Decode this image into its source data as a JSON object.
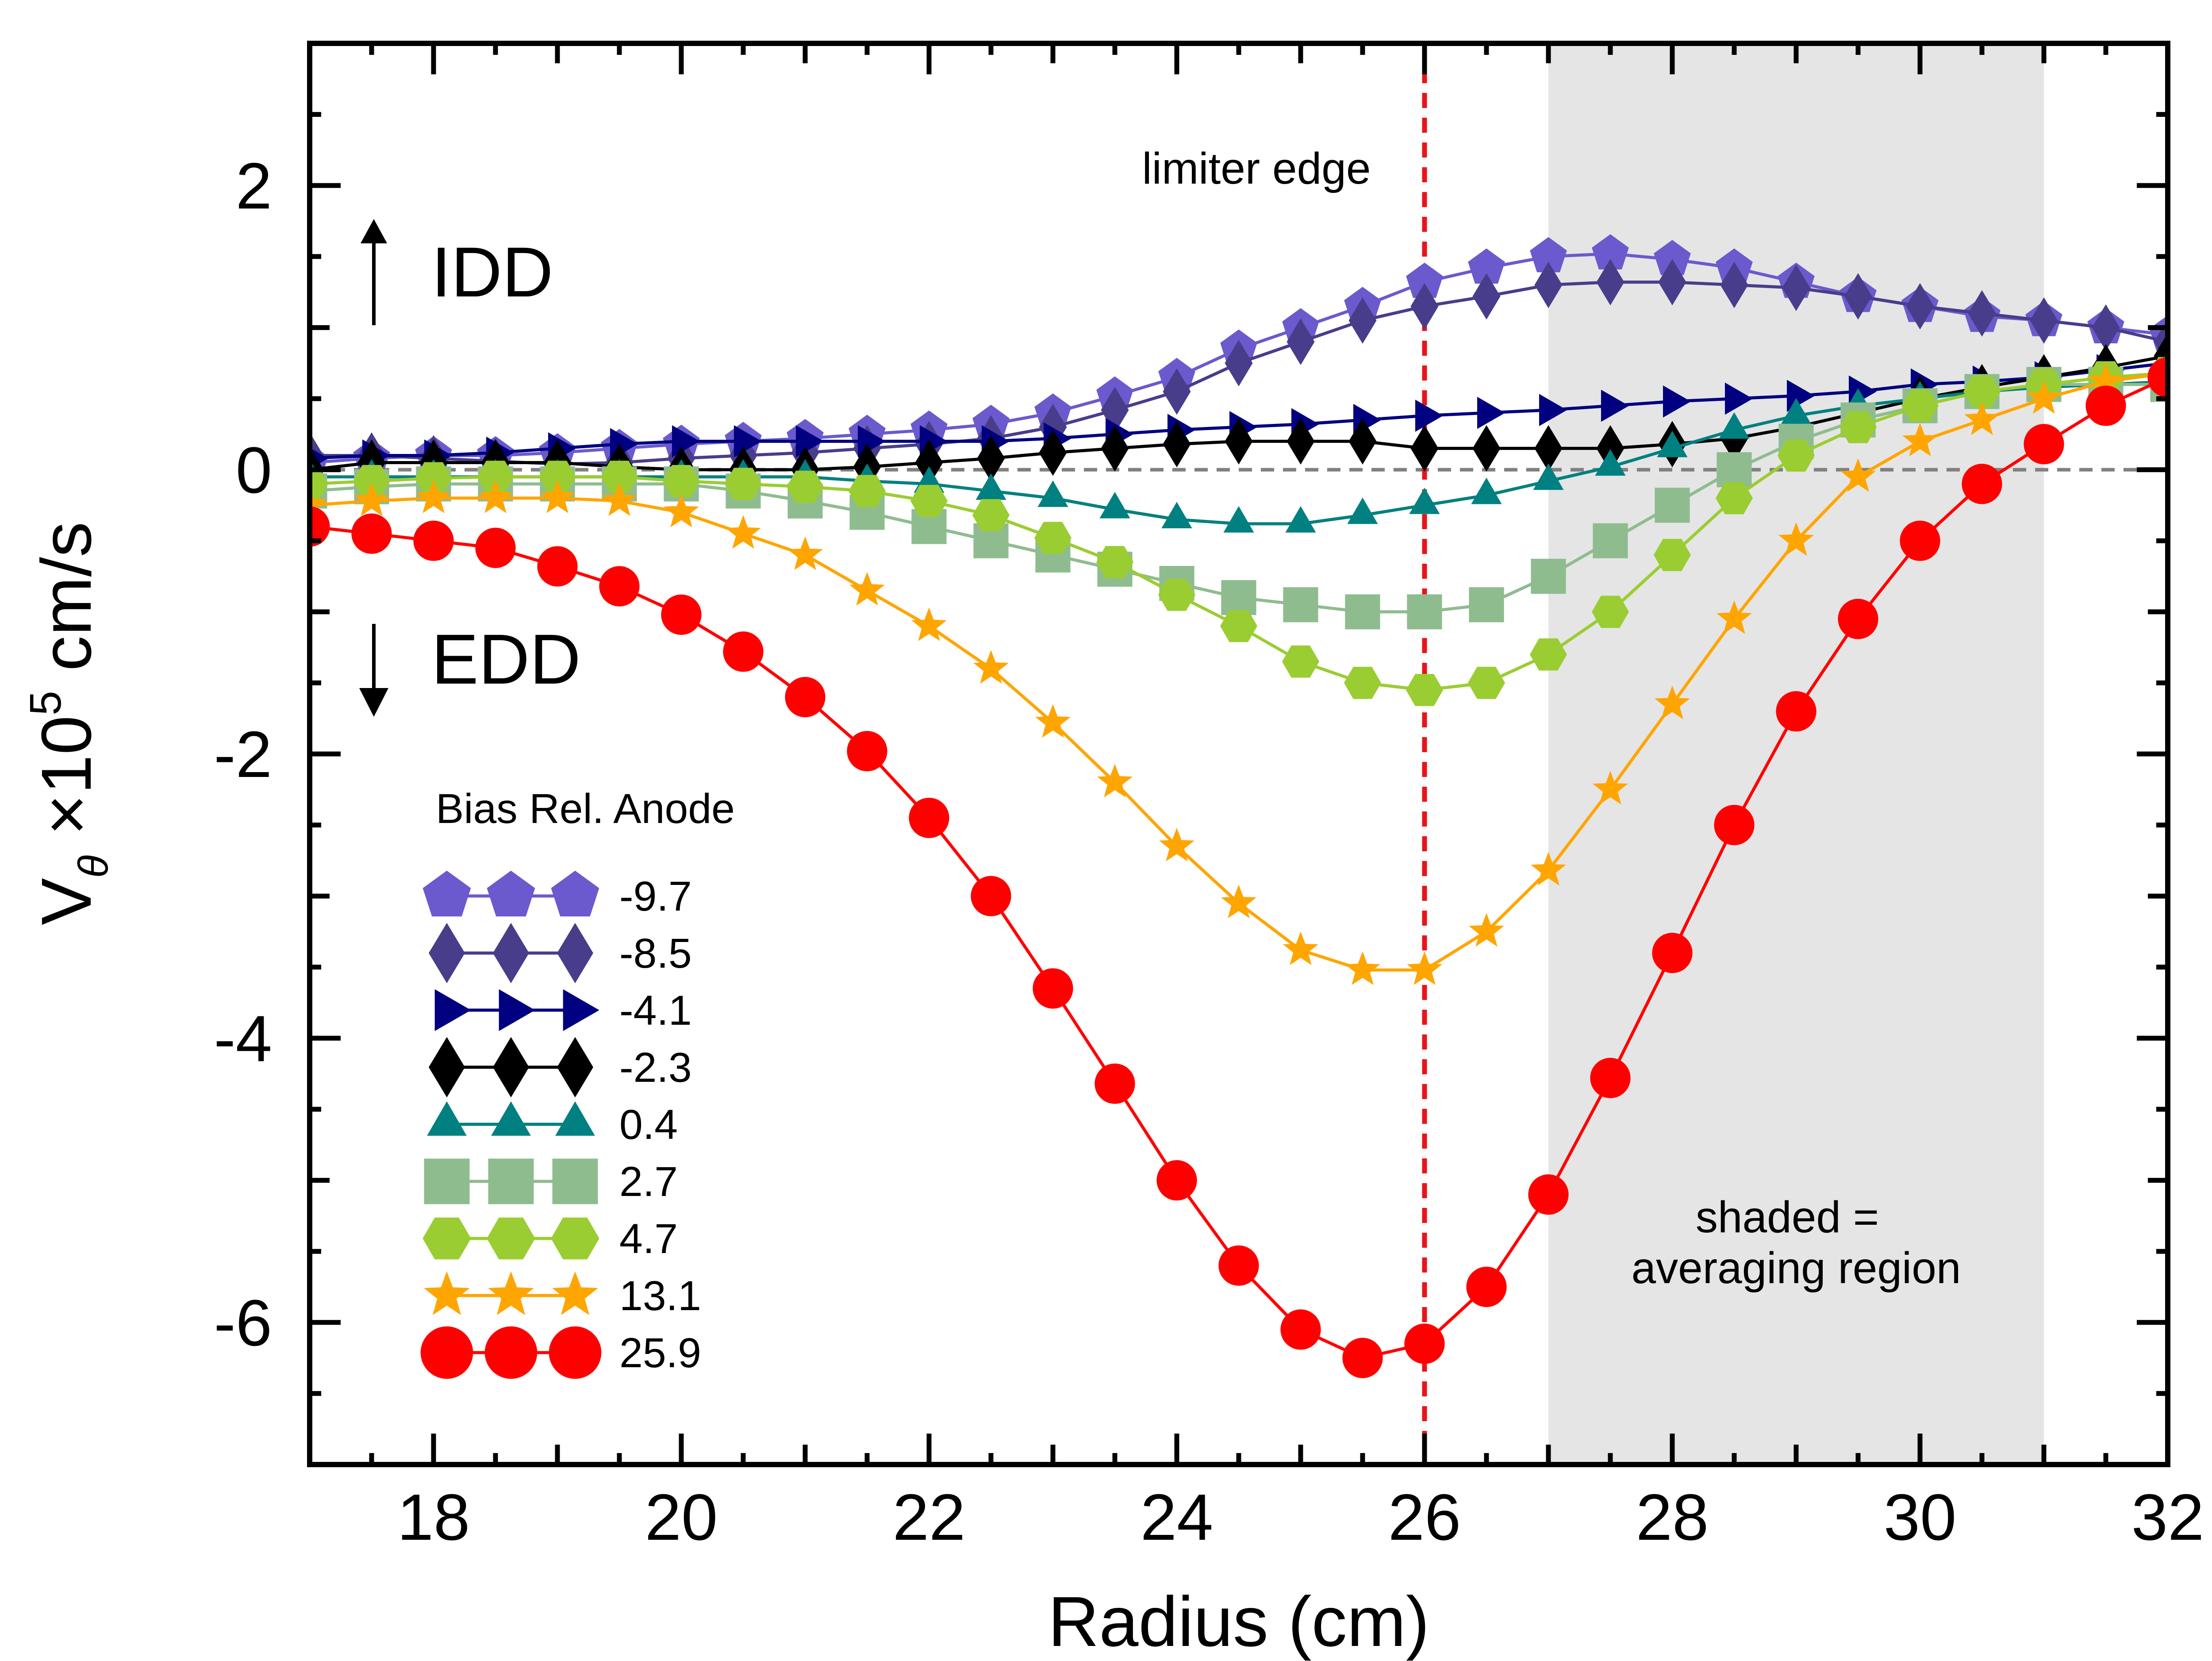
{
  "chart_data": {
    "type": "line",
    "xlabel": "Radius (cm)",
    "ylabel_parts": {
      "base": "V",
      "sub": "θ",
      "mid": " ×10",
      "sup": "5",
      "unit": " cm/s"
    },
    "xlim": [
      17,
      32
    ],
    "ylim": [
      -7,
      3
    ],
    "x_ticks": [
      18,
      20,
      22,
      24,
      26,
      28,
      30,
      32
    ],
    "y_ticks": [
      2,
      0,
      -2,
      -4,
      -6
    ],
    "annotations": {
      "limiter_label": "limiter edge",
      "limiter_x": 26,
      "idd_label": "IDD",
      "edd_label": "EDD",
      "shaded_line1": "shaded =",
      "shaded_line2": "averaging region",
      "shaded_range": [
        27,
        31
      ]
    },
    "legend": {
      "title": "Bias Rel. Anode",
      "placement": "lower-left"
    },
    "x": [
      17,
      17.5,
      18,
      18.5,
      19,
      19.5,
      20,
      20.5,
      21,
      21.5,
      22,
      22.5,
      23,
      23.5,
      24,
      24.5,
      25,
      25.5,
      26,
      26.5,
      27,
      27.5,
      28,
      28.5,
      29,
      29.5,
      30,
      30.5,
      31,
      31.5,
      32
    ],
    "series": [
      {
        "name": "-9.7",
        "color": "#6a5acd",
        "marker": "pentagon",
        "values": [
          0.05,
          0.08,
          0.1,
          0.1,
          0.12,
          0.15,
          0.18,
          0.2,
          0.22,
          0.25,
          0.28,
          0.32,
          0.4,
          0.52,
          0.65,
          0.85,
          1.0,
          1.15,
          1.32,
          1.42,
          1.5,
          1.52,
          1.48,
          1.42,
          1.32,
          1.22,
          1.15,
          1.08,
          1.05,
          1.0,
          0.95
        ]
      },
      {
        "name": "-8.5",
        "color": "#483d8b",
        "marker": "diamond",
        "values": [
          0.1,
          0.1,
          0.08,
          0.06,
          0.04,
          0.05,
          0.08,
          0.1,
          0.12,
          0.15,
          0.18,
          0.22,
          0.3,
          0.42,
          0.55,
          0.75,
          0.9,
          1.05,
          1.15,
          1.22,
          1.3,
          1.32,
          1.32,
          1.3,
          1.28,
          1.22,
          1.15,
          1.1,
          1.05,
          1.0,
          0.9
        ]
      },
      {
        "name": "-4.1",
        "color": "#000080",
        "marker": "triangle-right",
        "values": [
          0.08,
          0.1,
          0.1,
          0.12,
          0.15,
          0.18,
          0.2,
          0.2,
          0.2,
          0.2,
          0.2,
          0.2,
          0.22,
          0.25,
          0.28,
          0.3,
          0.32,
          0.35,
          0.38,
          0.4,
          0.42,
          0.45,
          0.48,
          0.5,
          0.52,
          0.55,
          0.6,
          0.62,
          0.65,
          0.7,
          0.75
        ]
      },
      {
        "name": "-2.3",
        "color": "#000000",
        "marker": "diamond",
        "values": [
          0.0,
          0.05,
          0.05,
          0.05,
          0.05,
          0.02,
          0.0,
          0.0,
          0.0,
          0.02,
          0.05,
          0.08,
          0.12,
          0.15,
          0.18,
          0.2,
          0.2,
          0.2,
          0.15,
          0.15,
          0.15,
          0.15,
          0.18,
          0.22,
          0.3,
          0.4,
          0.5,
          0.58,
          0.65,
          0.72,
          0.8
        ]
      },
      {
        "name": "0.4",
        "color": "#008080",
        "marker": "triangle-up",
        "values": [
          -0.05,
          -0.05,
          -0.05,
          -0.05,
          -0.05,
          -0.05,
          -0.05,
          -0.05,
          -0.05,
          -0.08,
          -0.1,
          -0.15,
          -0.2,
          -0.28,
          -0.35,
          -0.38,
          -0.38,
          -0.32,
          -0.25,
          -0.18,
          -0.08,
          0.02,
          0.15,
          0.28,
          0.38,
          0.45,
          0.5,
          0.55,
          0.58,
          0.6,
          0.62
        ]
      },
      {
        "name": "2.7",
        "color": "#8fbc8f",
        "marker": "square",
        "values": [
          -0.15,
          -0.12,
          -0.1,
          -0.1,
          -0.1,
          -0.1,
          -0.1,
          -0.15,
          -0.22,
          -0.3,
          -0.4,
          -0.5,
          -0.6,
          -0.7,
          -0.8,
          -0.9,
          -0.95,
          -1.0,
          -1.0,
          -0.95,
          -0.75,
          -0.5,
          -0.25,
          0.0,
          0.2,
          0.35,
          0.45,
          0.55,
          0.6,
          0.6,
          0.6
        ]
      },
      {
        "name": "4.7",
        "color": "#9acd32",
        "marker": "hexagon",
        "values": [
          -0.1,
          -0.08,
          -0.06,
          -0.05,
          -0.05,
          -0.05,
          -0.08,
          -0.1,
          -0.12,
          -0.15,
          -0.22,
          -0.32,
          -0.48,
          -0.65,
          -0.88,
          -1.1,
          -1.35,
          -1.5,
          -1.55,
          -1.5,
          -1.3,
          -1.0,
          -0.6,
          -0.2,
          0.1,
          0.3,
          0.45,
          0.55,
          0.6,
          0.65,
          0.68
        ]
      },
      {
        "name": "13.1",
        "color": "#ffa500",
        "marker": "star",
        "values": [
          -0.25,
          -0.22,
          -0.2,
          -0.2,
          -0.2,
          -0.22,
          -0.3,
          -0.45,
          -0.6,
          -0.85,
          -1.1,
          -1.4,
          -1.78,
          -2.2,
          -2.65,
          -3.05,
          -3.38,
          -3.52,
          -3.52,
          -3.25,
          -2.82,
          -2.25,
          -1.65,
          -1.05,
          -0.5,
          -0.05,
          0.2,
          0.35,
          0.5,
          0.62,
          0.68
        ]
      },
      {
        "name": "25.9",
        "color": "#ff0000",
        "marker": "circle",
        "values": [
          -0.4,
          -0.45,
          -0.5,
          -0.55,
          -0.68,
          -0.82,
          -1.02,
          -1.28,
          -1.6,
          -1.98,
          -2.45,
          -3.0,
          -3.65,
          -4.32,
          -5.0,
          -5.6,
          -6.05,
          -6.25,
          -6.15,
          -5.75,
          -5.1,
          -4.28,
          -3.4,
          -2.5,
          -1.7,
          -1.05,
          -0.5,
          -0.1,
          0.18,
          0.45,
          0.65
        ]
      }
    ]
  }
}
